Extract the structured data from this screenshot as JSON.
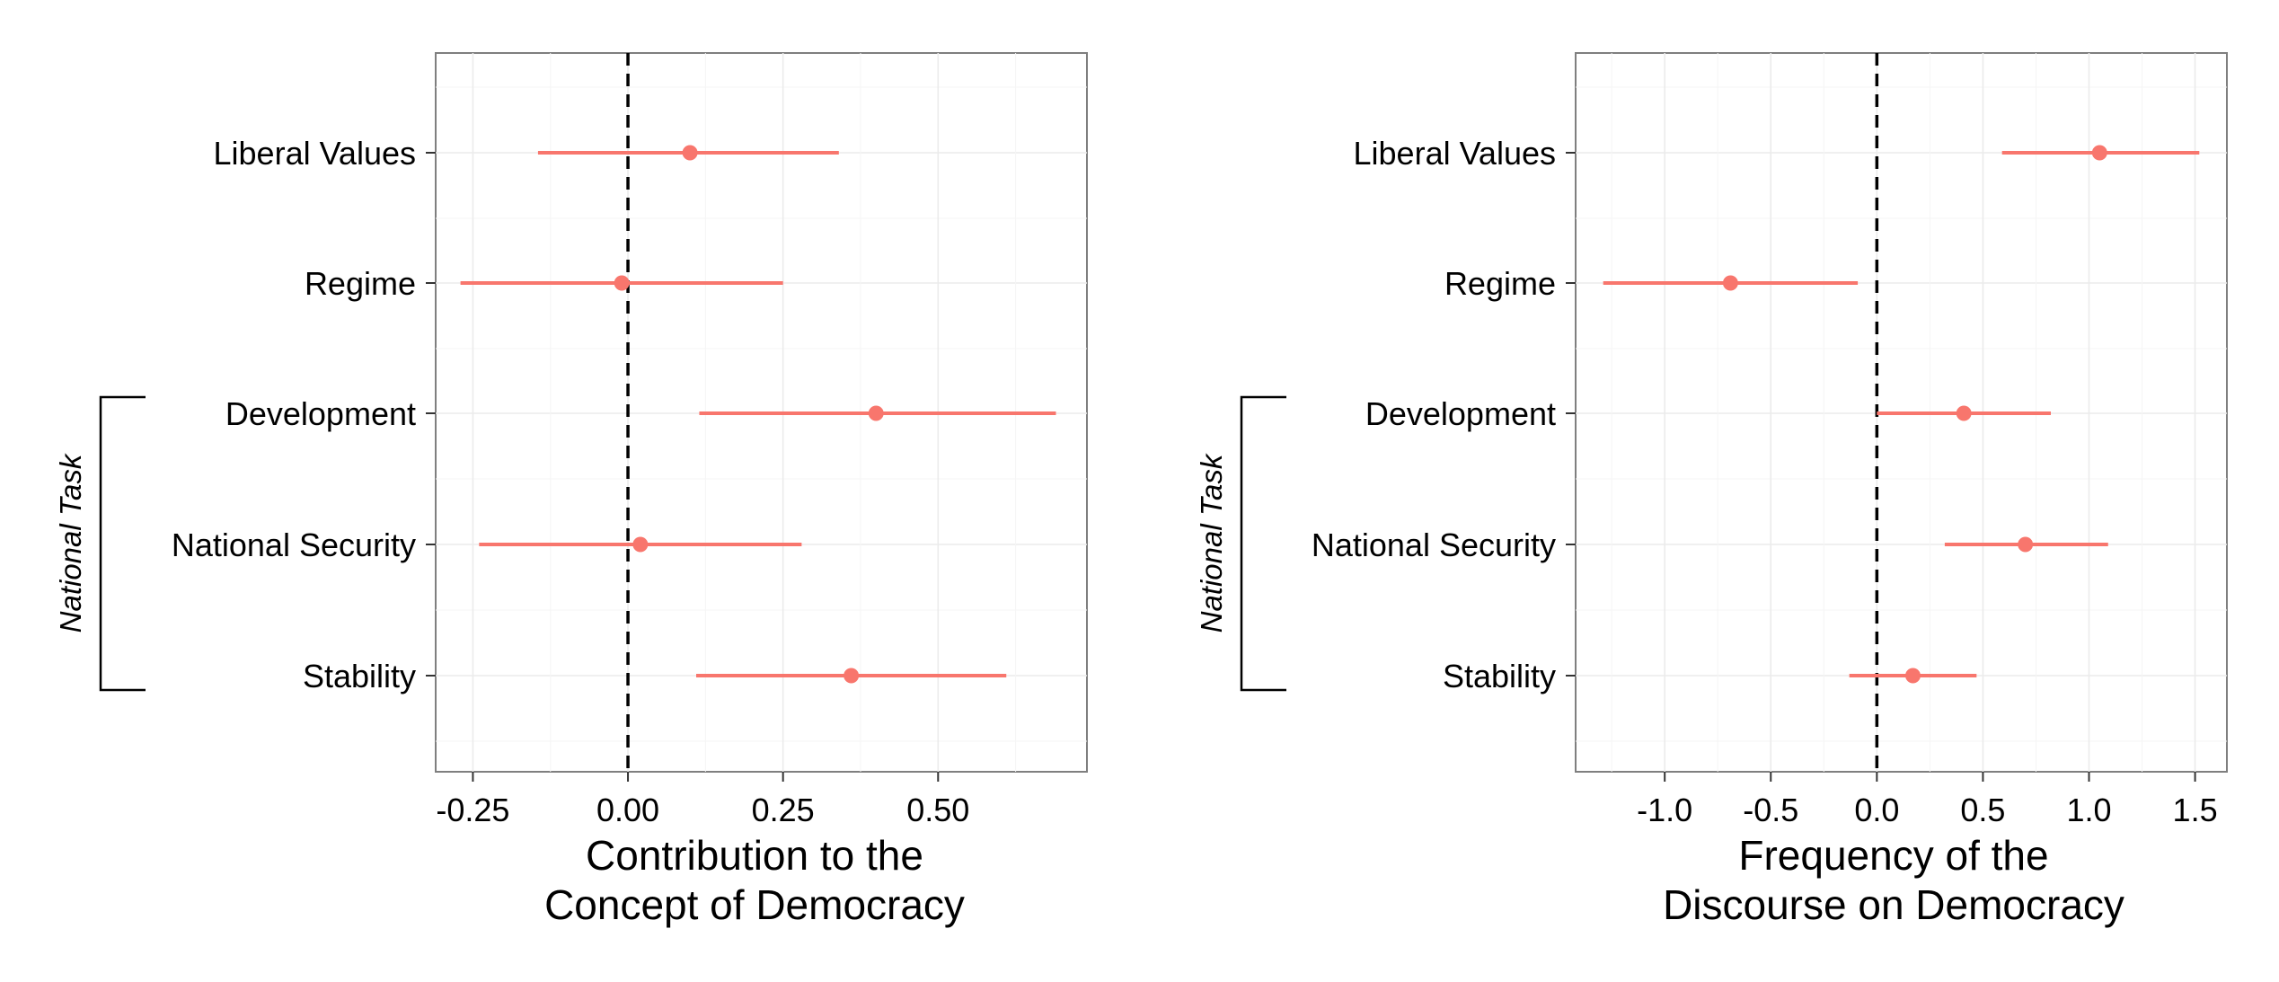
{
  "chart_data": [
    {
      "type": "scatter",
      "style": "point-range",
      "xlabel_line1": "Contribution to the",
      "xlabel_line2": "Concept of Democracy",
      "xlim": [
        -0.31,
        0.74
      ],
      "xticks": [
        -0.25,
        0.0,
        0.25,
        0.5
      ],
      "xtick_labels": [
        "-0.25",
        "0.00",
        "0.25",
        "0.50"
      ],
      "reference_line_x": 0,
      "categories": [
        "Liberal Values",
        "Regime",
        "Development",
        "National Security",
        "Stability"
      ],
      "estimates": [
        0.1,
        -0.01,
        0.4,
        0.02,
        0.36
      ],
      "ci_low": [
        -0.145,
        -0.27,
        0.115,
        -0.24,
        0.11
      ],
      "ci_high": [
        0.34,
        0.25,
        0.69,
        0.28,
        0.61
      ],
      "bracket_label": "National Task",
      "grid": true,
      "point_color": "#F8766D"
    },
    {
      "type": "scatter",
      "style": "point-range",
      "xlabel_line1": "Frequency of the",
      "xlabel_line2": "Discourse on Democracy",
      "xlim": [
        -1.42,
        1.65
      ],
      "xticks": [
        -1.0,
        -0.5,
        0.0,
        0.5,
        1.0,
        1.5
      ],
      "xtick_labels": [
        "-1.0",
        "-0.5",
        "0.0",
        "0.5",
        "1.0",
        "1.5"
      ],
      "reference_line_x": 0,
      "categories": [
        "Liberal Values",
        "Regime",
        "Development",
        "National Security",
        "Stability"
      ],
      "estimates": [
        1.05,
        -0.69,
        0.41,
        0.7,
        0.17
      ],
      "ci_low": [
        0.59,
        -1.29,
        0.0,
        0.32,
        -0.13
      ],
      "ci_high": [
        1.52,
        -0.09,
        0.82,
        1.09,
        0.47
      ],
      "bracket_label": "National Task",
      "grid": true,
      "point_color": "#F8766D"
    }
  ]
}
